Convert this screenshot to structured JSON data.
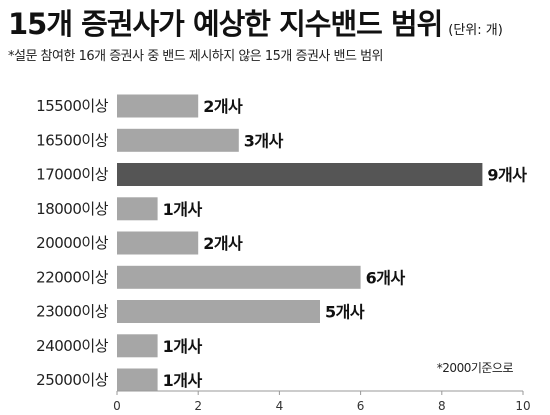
{
  "header": {
    "title": "15개 증권사가 예상한 지수밴드 범위",
    "unit": "(단위: 개)",
    "subtitle": "*설문 참여한 16개 증권사 중 밴드 제시하지 않은 15개 증권사 밴드 범위"
  },
  "note": "*2000기준으로",
  "chart_data": {
    "type": "bar",
    "orientation": "horizontal",
    "categories": [
      "15500이상",
      "16500이상",
      "17000이상",
      "18000이상",
      "20000이상",
      "22000이상",
      "23000이상",
      "24000이상",
      "25000이상"
    ],
    "values": [
      2,
      3,
      9,
      1,
      2,
      6,
      5,
      1,
      1
    ],
    "value_labels": [
      "2개사",
      "3개사",
      "9개사",
      "1개사",
      "2개사",
      "6개사",
      "5개사",
      "1개사",
      "1개사"
    ],
    "highlight_index": 2,
    "xlim": [
      0,
      10
    ],
    "xticks": [
      0,
      2,
      4,
      6,
      8,
      10
    ],
    "grid": false,
    "colors": {
      "bar": "#a6a6a6",
      "highlight": "#555555",
      "axis": "#999999"
    }
  }
}
